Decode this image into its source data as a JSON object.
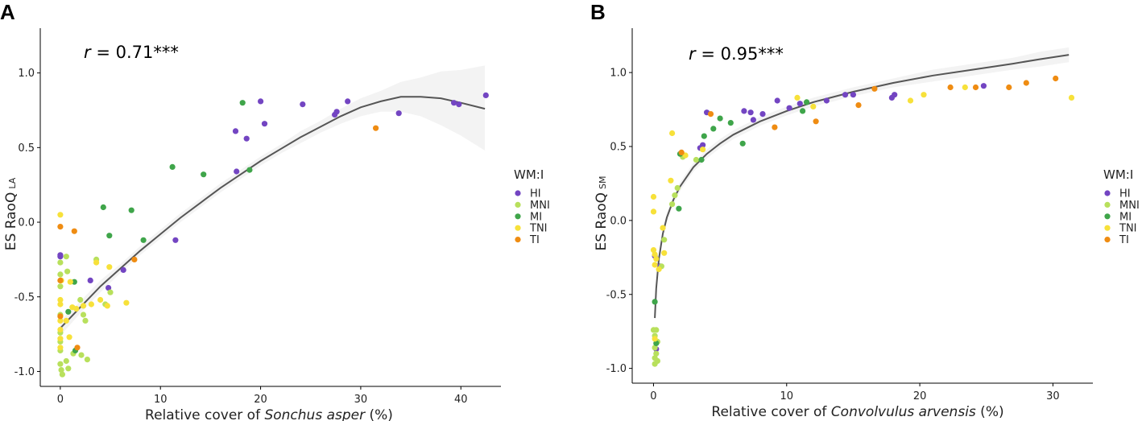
{
  "colors": {
    "HI": "#7345c2",
    "MNI": "#b8e05c",
    "MI": "#3fa54a",
    "TNI": "#f7e13a",
    "TI": "#ef8c12",
    "fit": "#555555",
    "band": "#ebebeb"
  },
  "legend": {
    "title": "WM:I",
    "entries": [
      "HI",
      "MNI",
      "MI",
      "TNI",
      "TI"
    ]
  },
  "chart_data": [
    {
      "type": "scatter",
      "panel": "A",
      "annotation": {
        "r_symbol": "r",
        "rest": " = 0.71***"
      },
      "ylabel_main": "ES RaoQ",
      "ylabel_sub": "LA",
      "xlabel_pre": "Relative cover of ",
      "xlabel_species": "Sonchus asper",
      "xlabel_post": " (%)",
      "xlim": [
        -2,
        44
      ],
      "ylim": [
        -1.1,
        1.3
      ],
      "xticks": [
        0,
        10,
        20,
        30,
        40
      ],
      "yticks": [
        -1.0,
        -0.5,
        0.0,
        0.5,
        1.0
      ],
      "ytick_labels": [
        "-1.0",
        "-0.5",
        "0.0",
        "0.5",
        "1.0"
      ],
      "fit": {
        "x": [
          0,
          2,
          4,
          6,
          8,
          10,
          12,
          14,
          16,
          18,
          20,
          22,
          24,
          26,
          28,
          30,
          32,
          34,
          36,
          38,
          40,
          42.4
        ],
        "y": [
          -0.71,
          -0.57,
          -0.43,
          -0.31,
          -0.19,
          -0.08,
          0.03,
          0.13,
          0.23,
          0.32,
          0.41,
          0.49,
          0.57,
          0.64,
          0.71,
          0.77,
          0.81,
          0.84,
          0.84,
          0.83,
          0.8,
          0.76
        ],
        "lower": [
          -0.76,
          -0.61,
          -0.47,
          -0.34,
          -0.22,
          -0.11,
          0.0,
          0.1,
          0.2,
          0.29,
          0.38,
          0.46,
          0.53,
          0.6,
          0.66,
          0.71,
          0.74,
          0.74,
          0.71,
          0.65,
          0.58,
          0.48
        ],
        "upper": [
          -0.66,
          -0.53,
          -0.39,
          -0.28,
          -0.16,
          -0.05,
          0.06,
          0.16,
          0.26,
          0.35,
          0.44,
          0.52,
          0.61,
          0.68,
          0.76,
          0.83,
          0.88,
          0.94,
          0.97,
          1.01,
          1.02,
          1.05
        ]
      },
      "points": [
        {
          "x": 0.0,
          "y": -0.22,
          "g": "HI"
        },
        {
          "x": 0.0,
          "y": -0.23,
          "g": "HI"
        },
        {
          "x": 3.0,
          "y": -0.39,
          "g": "HI"
        },
        {
          "x": 4.8,
          "y": -0.44,
          "g": "HI"
        },
        {
          "x": 6.3,
          "y": -0.32,
          "g": "HI"
        },
        {
          "x": 11.5,
          "y": -0.12,
          "g": "HI"
        },
        {
          "x": 17.5,
          "y": 0.61,
          "g": "HI"
        },
        {
          "x": 17.6,
          "y": 0.34,
          "g": "HI"
        },
        {
          "x": 18.6,
          "y": 0.56,
          "g": "HI"
        },
        {
          "x": 20.0,
          "y": 0.81,
          "g": "HI"
        },
        {
          "x": 20.4,
          "y": 0.66,
          "g": "HI"
        },
        {
          "x": 24.2,
          "y": 0.79,
          "g": "HI"
        },
        {
          "x": 27.4,
          "y": 0.72,
          "g": "HI"
        },
        {
          "x": 27.6,
          "y": 0.74,
          "g": "HI"
        },
        {
          "x": 28.7,
          "y": 0.81,
          "g": "HI"
        },
        {
          "x": 33.8,
          "y": 0.73,
          "g": "HI"
        },
        {
          "x": 39.3,
          "y": 0.8,
          "g": "HI"
        },
        {
          "x": 39.8,
          "y": 0.79,
          "g": "HI"
        },
        {
          "x": 42.5,
          "y": 0.85,
          "g": "HI"
        },
        {
          "x": 0.0,
          "y": -0.27,
          "g": "MNI"
        },
        {
          "x": 0.0,
          "y": -0.35,
          "g": "MNI"
        },
        {
          "x": 0.0,
          "y": -0.43,
          "g": "MNI"
        },
        {
          "x": 0.0,
          "y": -0.62,
          "g": "MNI"
        },
        {
          "x": 0.0,
          "y": -0.74,
          "g": "MNI"
        },
        {
          "x": 0.0,
          "y": -0.8,
          "g": "MNI"
        },
        {
          "x": 0.0,
          "y": -0.86,
          "g": "MNI"
        },
        {
          "x": 0.0,
          "y": -0.95,
          "g": "MNI"
        },
        {
          "x": 0.1,
          "y": -0.99,
          "g": "MNI"
        },
        {
          "x": 0.2,
          "y": -1.02,
          "g": "MNI"
        },
        {
          "x": 0.6,
          "y": -0.23,
          "g": "MNI"
        },
        {
          "x": 0.7,
          "y": -0.33,
          "g": "MNI"
        },
        {
          "x": 0.6,
          "y": -0.93,
          "g": "MNI"
        },
        {
          "x": 0.8,
          "y": -0.98,
          "g": "MNI"
        },
        {
          "x": 1.3,
          "y": -0.88,
          "g": "MNI"
        },
        {
          "x": 2.0,
          "y": -0.52,
          "g": "MNI"
        },
        {
          "x": 2.3,
          "y": -0.62,
          "g": "MNI"
        },
        {
          "x": 2.5,
          "y": -0.66,
          "g": "MNI"
        },
        {
          "x": 2.1,
          "y": -0.89,
          "g": "MNI"
        },
        {
          "x": 2.7,
          "y": -0.92,
          "g": "MNI"
        },
        {
          "x": 3.6,
          "y": -0.25,
          "g": "MNI"
        },
        {
          "x": 4.5,
          "y": -0.55,
          "g": "MNI"
        },
        {
          "x": 5.0,
          "y": -0.47,
          "g": "MNI"
        },
        {
          "x": 0.8,
          "y": -0.6,
          "g": "MI"
        },
        {
          "x": 1.4,
          "y": -0.4,
          "g": "MI"
        },
        {
          "x": 1.5,
          "y": -0.86,
          "g": "MI"
        },
        {
          "x": 4.3,
          "y": 0.1,
          "g": "MI"
        },
        {
          "x": 4.9,
          "y": -0.09,
          "g": "MI"
        },
        {
          "x": 7.1,
          "y": 0.08,
          "g": "MI"
        },
        {
          "x": 8.3,
          "y": -0.12,
          "g": "MI"
        },
        {
          "x": 11.2,
          "y": 0.37,
          "g": "MI"
        },
        {
          "x": 14.3,
          "y": 0.32,
          "g": "MI"
        },
        {
          "x": 18.2,
          "y": 0.8,
          "g": "MI"
        },
        {
          "x": 18.9,
          "y": 0.35,
          "g": "MI"
        },
        {
          "x": 0.0,
          "y": 0.05,
          "g": "TNI"
        },
        {
          "x": 0.0,
          "y": -0.52,
          "g": "TNI"
        },
        {
          "x": 0.0,
          "y": -0.55,
          "g": "TNI"
        },
        {
          "x": 0.0,
          "y": -0.66,
          "g": "TNI"
        },
        {
          "x": 0.0,
          "y": -0.72,
          "g": "TNI"
        },
        {
          "x": 0.0,
          "y": -0.78,
          "g": "TNI"
        },
        {
          "x": 0.0,
          "y": -0.84,
          "g": "TNI"
        },
        {
          "x": 0.1,
          "y": -0.39,
          "g": "TNI"
        },
        {
          "x": 0.6,
          "y": -0.66,
          "g": "TNI"
        },
        {
          "x": 0.9,
          "y": -0.77,
          "g": "TNI"
        },
        {
          "x": 1.0,
          "y": -0.4,
          "g": "TNI"
        },
        {
          "x": 1.2,
          "y": -0.57,
          "g": "TNI"
        },
        {
          "x": 1.6,
          "y": -0.58,
          "g": "TNI"
        },
        {
          "x": 2.3,
          "y": -0.56,
          "g": "TNI"
        },
        {
          "x": 3.1,
          "y": -0.55,
          "g": "TNI"
        },
        {
          "x": 3.6,
          "y": -0.27,
          "g": "TNI"
        },
        {
          "x": 4.0,
          "y": -0.52,
          "g": "TNI"
        },
        {
          "x": 4.7,
          "y": -0.56,
          "g": "TNI"
        },
        {
          "x": 4.9,
          "y": -0.3,
          "g": "TNI"
        },
        {
          "x": 6.6,
          "y": -0.54,
          "g": "TNI"
        },
        {
          "x": 0.0,
          "y": -0.03,
          "g": "TI"
        },
        {
          "x": 0.0,
          "y": -0.39,
          "g": "TI"
        },
        {
          "x": 0.0,
          "y": -0.63,
          "g": "TI"
        },
        {
          "x": 1.4,
          "y": -0.06,
          "g": "TI"
        },
        {
          "x": 1.7,
          "y": -0.84,
          "g": "TI"
        },
        {
          "x": 7.4,
          "y": -0.25,
          "g": "TI"
        },
        {
          "x": 31.5,
          "y": 0.63,
          "g": "TI"
        }
      ]
    },
    {
      "type": "scatter",
      "panel": "B",
      "annotation": {
        "r_symbol": "r",
        "rest": " = 0.95***"
      },
      "ylabel_main": "ES RaoQ",
      "ylabel_sub": "SM",
      "xlabel_pre": "Relative cover of ",
      "xlabel_species": "Convolvulus arvensis",
      "xlabel_post": " (%)",
      "xlim": [
        -1.6,
        33
      ],
      "ylim": [
        -1.1,
        1.3
      ],
      "xticks": [
        0,
        10,
        20,
        30
      ],
      "yticks": [
        -1.0,
        -0.5,
        0.0,
        0.5,
        1.0
      ],
      "ytick_labels": [
        "-1.0",
        "-0.5",
        "0.0",
        "0.5",
        "1.0"
      ],
      "fit": {
        "x": [
          0.1,
          0.2,
          0.4,
          0.7,
          1.0,
          1.5,
          2.0,
          3.0,
          4.0,
          5.0,
          6.0,
          8.0,
          10.0,
          12.0,
          15.0,
          18.0,
          21.0,
          24.0,
          27.0,
          29.0,
          31.2
        ],
        "y": [
          -0.66,
          -0.46,
          -0.26,
          -0.09,
          0.02,
          0.14,
          0.23,
          0.36,
          0.45,
          0.52,
          0.58,
          0.67,
          0.74,
          0.8,
          0.87,
          0.93,
          0.98,
          1.02,
          1.06,
          1.09,
          1.12
        ],
        "lower": [
          -0.7,
          -0.5,
          -0.3,
          -0.12,
          -0.01,
          0.11,
          0.2,
          0.33,
          0.42,
          0.49,
          0.55,
          0.64,
          0.71,
          0.77,
          0.84,
          0.9,
          0.94,
          0.98,
          1.02,
          1.04,
          1.07
        ],
        "upper": [
          -0.62,
          -0.42,
          -0.22,
          -0.06,
          0.05,
          0.17,
          0.26,
          0.39,
          0.48,
          0.55,
          0.61,
          0.7,
          0.77,
          0.83,
          0.9,
          0.96,
          1.02,
          1.06,
          1.1,
          1.14,
          1.17
        ]
      },
      "points": [
        {
          "x": 0.1,
          "y": -0.24,
          "g": "HI"
        },
        {
          "x": 0.2,
          "y": -0.87,
          "g": "HI"
        },
        {
          "x": 0.5,
          "y": -0.31,
          "g": "HI"
        },
        {
          "x": 3.5,
          "y": 0.49,
          "g": "HI"
        },
        {
          "x": 3.7,
          "y": 0.51,
          "g": "HI"
        },
        {
          "x": 4.0,
          "y": 0.73,
          "g": "HI"
        },
        {
          "x": 6.8,
          "y": 0.74,
          "g": "HI"
        },
        {
          "x": 7.3,
          "y": 0.73,
          "g": "HI"
        },
        {
          "x": 7.5,
          "y": 0.68,
          "g": "HI"
        },
        {
          "x": 8.2,
          "y": 0.72,
          "g": "HI"
        },
        {
          "x": 9.3,
          "y": 0.81,
          "g": "HI"
        },
        {
          "x": 10.2,
          "y": 0.76,
          "g": "HI"
        },
        {
          "x": 11.0,
          "y": 0.79,
          "g": "HI"
        },
        {
          "x": 13.0,
          "y": 0.81,
          "g": "HI"
        },
        {
          "x": 14.4,
          "y": 0.85,
          "g": "HI"
        },
        {
          "x": 15.0,
          "y": 0.85,
          "g": "HI"
        },
        {
          "x": 17.9,
          "y": 0.83,
          "g": "HI"
        },
        {
          "x": 18.1,
          "y": 0.85,
          "g": "HI"
        },
        {
          "x": 24.8,
          "y": 0.91,
          "g": "HI"
        },
        {
          "x": 0.0,
          "y": -0.74,
          "g": "MNI"
        },
        {
          "x": 0.1,
          "y": -0.78,
          "g": "MNI"
        },
        {
          "x": 0.2,
          "y": -0.74,
          "g": "MNI"
        },
        {
          "x": 0.1,
          "y": -0.86,
          "g": "MNI"
        },
        {
          "x": 0.2,
          "y": -0.9,
          "g": "MNI"
        },
        {
          "x": 0.1,
          "y": -0.93,
          "g": "MNI"
        },
        {
          "x": 0.1,
          "y": -0.97,
          "g": "MNI"
        },
        {
          "x": 0.3,
          "y": -0.95,
          "g": "MNI"
        },
        {
          "x": 0.3,
          "y": -0.82,
          "g": "MNI"
        },
        {
          "x": 0.6,
          "y": -0.31,
          "g": "MNI"
        },
        {
          "x": 0.8,
          "y": -0.13,
          "g": "MNI"
        },
        {
          "x": 1.4,
          "y": 0.11,
          "g": "MNI"
        },
        {
          "x": 1.6,
          "y": 0.17,
          "g": "MNI"
        },
        {
          "x": 1.8,
          "y": 0.22,
          "g": "MNI"
        },
        {
          "x": 2.2,
          "y": 0.43,
          "g": "MNI"
        },
        {
          "x": 3.2,
          "y": 0.41,
          "g": "MNI"
        },
        {
          "x": 0.1,
          "y": -0.55,
          "g": "MI"
        },
        {
          "x": 0.2,
          "y": -0.83,
          "g": "MI"
        },
        {
          "x": 1.9,
          "y": 0.08,
          "g": "MI"
        },
        {
          "x": 2.0,
          "y": 0.45,
          "g": "MI"
        },
        {
          "x": 3.6,
          "y": 0.41,
          "g": "MI"
        },
        {
          "x": 3.8,
          "y": 0.57,
          "g": "MI"
        },
        {
          "x": 4.5,
          "y": 0.62,
          "g": "MI"
        },
        {
          "x": 5.0,
          "y": 0.69,
          "g": "MI"
        },
        {
          "x": 5.8,
          "y": 0.66,
          "g": "MI"
        },
        {
          "x": 6.7,
          "y": 0.52,
          "g": "MI"
        },
        {
          "x": 11.2,
          "y": 0.74,
          "g": "MI"
        },
        {
          "x": 11.5,
          "y": 0.8,
          "g": "MI"
        },
        {
          "x": 0.0,
          "y": 0.16,
          "g": "TNI"
        },
        {
          "x": 0.0,
          "y": 0.06,
          "g": "TNI"
        },
        {
          "x": 0.0,
          "y": -0.2,
          "g": "TNI"
        },
        {
          "x": 0.1,
          "y": -0.23,
          "g": "TNI"
        },
        {
          "x": 0.1,
          "y": -0.3,
          "g": "TNI"
        },
        {
          "x": 0.2,
          "y": -0.26,
          "g": "TNI"
        },
        {
          "x": 0.4,
          "y": -0.33,
          "g": "TNI"
        },
        {
          "x": 0.1,
          "y": -0.8,
          "g": "TNI"
        },
        {
          "x": 0.7,
          "y": -0.05,
          "g": "TNI"
        },
        {
          "x": 0.8,
          "y": -0.22,
          "g": "TNI"
        },
        {
          "x": 1.3,
          "y": 0.27,
          "g": "TNI"
        },
        {
          "x": 1.4,
          "y": 0.59,
          "g": "TNI"
        },
        {
          "x": 2.4,
          "y": 0.44,
          "g": "TNI"
        },
        {
          "x": 3.7,
          "y": 0.48,
          "g": "TNI"
        },
        {
          "x": 10.8,
          "y": 0.83,
          "g": "TNI"
        },
        {
          "x": 12.0,
          "y": 0.77,
          "g": "TNI"
        },
        {
          "x": 19.3,
          "y": 0.81,
          "g": "TNI"
        },
        {
          "x": 20.3,
          "y": 0.85,
          "g": "TNI"
        },
        {
          "x": 23.4,
          "y": 0.9,
          "g": "TNI"
        },
        {
          "x": 31.4,
          "y": 0.83,
          "g": "TNI"
        },
        {
          "x": 2.1,
          "y": 0.46,
          "g": "TI"
        },
        {
          "x": 4.3,
          "y": 0.72,
          "g": "TI"
        },
        {
          "x": 9.1,
          "y": 0.63,
          "g": "TI"
        },
        {
          "x": 12.2,
          "y": 0.67,
          "g": "TI"
        },
        {
          "x": 15.4,
          "y": 0.78,
          "g": "TI"
        },
        {
          "x": 16.6,
          "y": 0.89,
          "g": "TI"
        },
        {
          "x": 22.3,
          "y": 0.9,
          "g": "TI"
        },
        {
          "x": 24.2,
          "y": 0.9,
          "g": "TI"
        },
        {
          "x": 26.7,
          "y": 0.9,
          "g": "TI"
        },
        {
          "x": 28.0,
          "y": 0.93,
          "g": "TI"
        },
        {
          "x": 30.2,
          "y": 0.96,
          "g": "TI"
        }
      ]
    }
  ]
}
